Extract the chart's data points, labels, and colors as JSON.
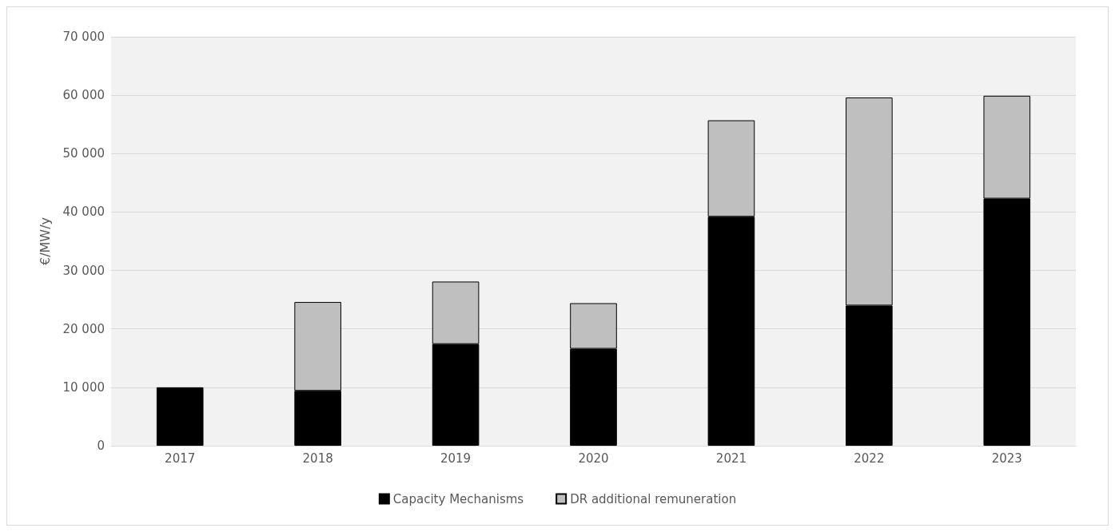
{
  "chart_data": {
    "type": "bar",
    "stacked": true,
    "ylabel": "€/MW/y",
    "categories": [
      "2017",
      "2018",
      "2019",
      "2020",
      "2021",
      "2022",
      "2023"
    ],
    "series": [
      {
        "name": "Capacity Mechanisms",
        "color": "#000000",
        "values": [
          10000,
          9400,
          17400,
          16600,
          39200,
          24000,
          42300
        ]
      },
      {
        "name": "DR additional remuneration",
        "color": "#bfbfbf",
        "values": [
          null,
          15200,
          10700,
          7800,
          16500,
          35600,
          17600
        ]
      }
    ],
    "ylim": [
      0,
      70000
    ],
    "yticks": [
      {
        "value": 0,
        "label": "0"
      },
      {
        "value": 10000,
        "label": "10 000"
      },
      {
        "value": 20000,
        "label": "20 000"
      },
      {
        "value": 30000,
        "label": "30 000"
      },
      {
        "value": 40000,
        "label": "40 000"
      },
      {
        "value": 50000,
        "label": "50 000"
      },
      {
        "value": 60000,
        "label": "60 000"
      },
      {
        "value": 70000,
        "label": "70 000"
      }
    ],
    "grid": "y",
    "legend": "bottom"
  }
}
